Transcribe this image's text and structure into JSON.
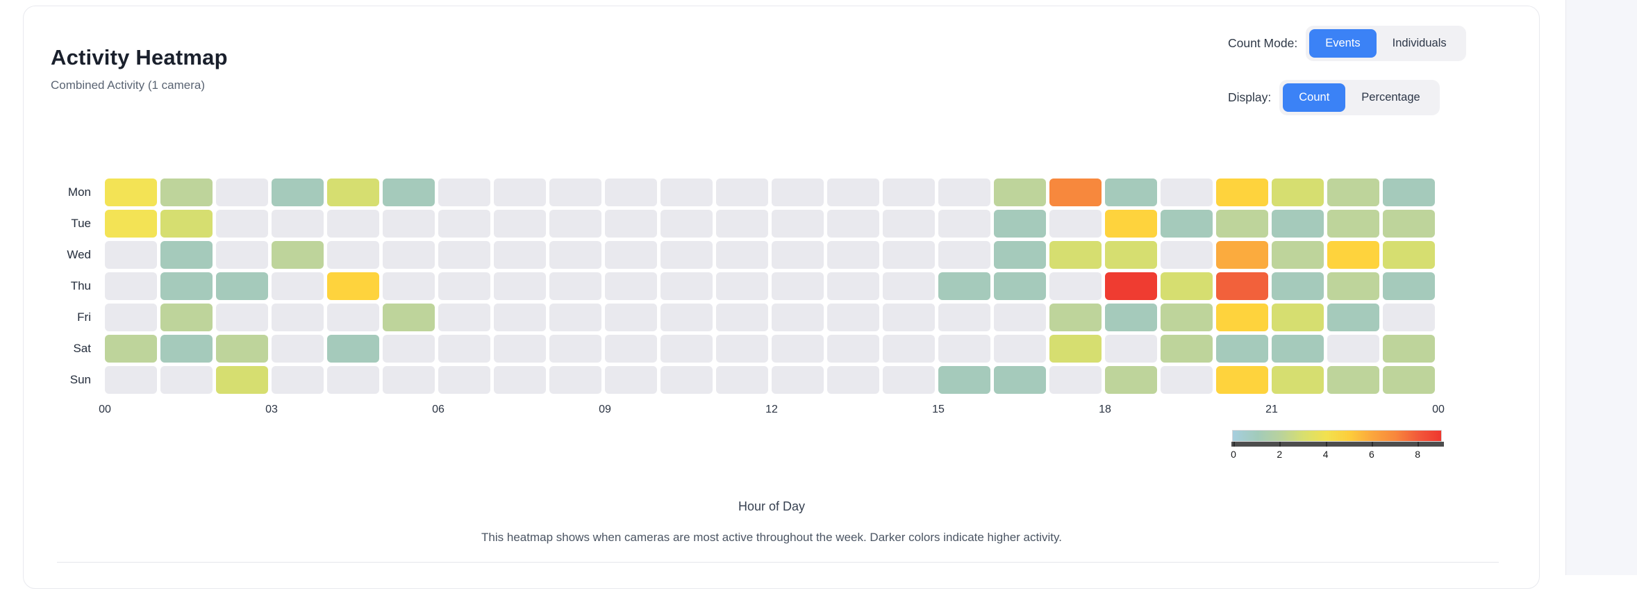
{
  "header": {
    "title": "Activity Heatmap",
    "subtitle": "Combined Activity (1 camera)"
  },
  "controls": {
    "count_mode": {
      "label": "Count Mode:",
      "options": [
        "Events",
        "Individuals"
      ],
      "selected": "Events"
    },
    "display": {
      "label": "Display:",
      "options": [
        "Count",
        "Percentage"
      ],
      "selected": "Count"
    },
    "accent_color": "#3b82f6"
  },
  "chart_data": {
    "type": "heatmap",
    "rows": [
      "Mon",
      "Tue",
      "Wed",
      "Thu",
      "Fri",
      "Sat",
      "Sun"
    ],
    "x_tick_labels": [
      "00",
      "03",
      "06",
      "09",
      "12",
      "15",
      "18",
      "21",
      "00"
    ],
    "hours": [
      0,
      1,
      2,
      3,
      4,
      5,
      6,
      7,
      8,
      9,
      10,
      11,
      12,
      13,
      14,
      15,
      16,
      17,
      18,
      19,
      20,
      21,
      22,
      23
    ],
    "values": [
      [
        4,
        2,
        0,
        1,
        3,
        1,
        0,
        0,
        0,
        0,
        0,
        0,
        0,
        0,
        0,
        0,
        2,
        7,
        1,
        0,
        5,
        3,
        2,
        1
      ],
      [
        4,
        3,
        0,
        0,
        0,
        0,
        0,
        0,
        0,
        0,
        0,
        0,
        0,
        0,
        0,
        0,
        1,
        0,
        5,
        1,
        2,
        1,
        2,
        2
      ],
      [
        0,
        1,
        0,
        2,
        0,
        0,
        0,
        0,
        0,
        0,
        0,
        0,
        0,
        0,
        0,
        0,
        1,
        3,
        3,
        0,
        6,
        2,
        5,
        3
      ],
      [
        0,
        1,
        1,
        0,
        5,
        0,
        0,
        0,
        0,
        0,
        0,
        0,
        0,
        0,
        0,
        1,
        1,
        0,
        9,
        3,
        8,
        1,
        2,
        1
      ],
      [
        0,
        2,
        0,
        0,
        0,
        2,
        0,
        0,
        0,
        0,
        0,
        0,
        0,
        0,
        0,
        0,
        0,
        2,
        1,
        2,
        5,
        3,
        1,
        0
      ],
      [
        2,
        1,
        2,
        0,
        1,
        0,
        0,
        0,
        0,
        0,
        0,
        0,
        0,
        0,
        0,
        0,
        0,
        3,
        0,
        2,
        1,
        1,
        0,
        2
      ],
      [
        0,
        0,
        3,
        0,
        0,
        0,
        0,
        0,
        0,
        0,
        0,
        0,
        0,
        0,
        0,
        1,
        1,
        0,
        2,
        0,
        5,
        3,
        2,
        2
      ]
    ],
    "value_colors": {
      "0": "#e9e9ee",
      "1": "#a5cabb",
      "2": "#bed49b",
      "3": "#d6de70",
      "4": "#f3e355",
      "5": "#fed33d",
      "6": "#fbab3e",
      "7": "#f7883d",
      "8": "#f2613b",
      "9": "#ef3c31"
    },
    "colorbar": {
      "min": 0,
      "max": 9,
      "ticks": [
        0,
        2,
        4,
        6,
        8
      ],
      "gradient": [
        [
          0,
          "#a6cede"
        ],
        [
          12,
          "#a2cbba"
        ],
        [
          23,
          "#b9d29c"
        ],
        [
          34,
          "#d8df6e"
        ],
        [
          45,
          "#f2e14f"
        ],
        [
          56,
          "#fdcd3b"
        ],
        [
          67,
          "#fba63d"
        ],
        [
          78,
          "#f8873c"
        ],
        [
          89,
          "#f2593a"
        ],
        [
          100,
          "#ee372f"
        ]
      ],
      "legend_position": "bottom-right"
    },
    "xlabel": "Hour of Day",
    "caption": "This heatmap shows when cameras are most active throughout the week. Darker colors indicate higher activity."
  }
}
